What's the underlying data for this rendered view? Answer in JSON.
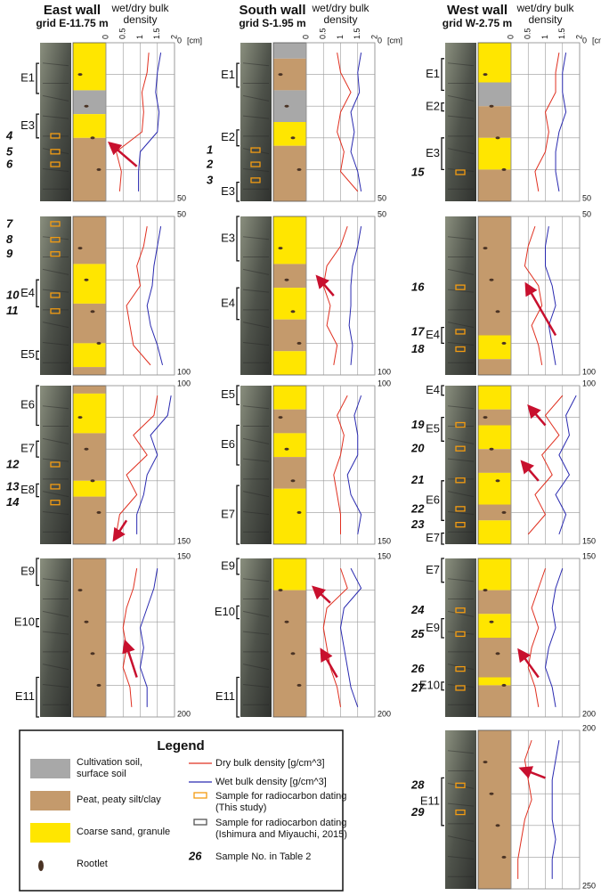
{
  "axis": {
    "ticks": [
      0,
      0.5,
      1,
      1.5,
      2
    ],
    "unit": "[cm]"
  },
  "walls": [
    {
      "title": "East wall",
      "grid": "grid E-11.75 m",
      "axis_label": [
        "wet/dry bulk",
        "density"
      ],
      "panels": [
        {
          "depths": [
            0,
            50
          ],
          "units": [
            "E1",
            "E3"
          ],
          "samples": [
            4,
            5,
            6
          ],
          "dry": [
            1.25,
            1.2,
            1.05,
            1.1,
            1.05,
            0.3,
            0.45,
            0.4
          ],
          "wet": [
            1.6,
            1.5,
            1.45,
            1.55,
            1.5,
            1.0,
            0.95,
            0.95
          ]
        },
        {
          "depths": [
            50,
            100
          ],
          "units": [
            "E4",
            "E5"
          ],
          "samples": [
            7,
            8,
            9,
            10,
            11
          ],
          "dry": [
            1.2,
            1.1,
            0.9,
            1.0,
            0.6,
            0.7,
            0.8,
            1.3
          ],
          "wet": [
            1.6,
            1.5,
            1.4,
            1.35,
            1.2,
            1.3,
            1.5,
            1.65
          ]
        },
        {
          "depths": [
            100,
            150
          ],
          "units": [
            "E6",
            "E7",
            "E8"
          ],
          "samples": [
            12,
            13,
            14
          ],
          "dry": [
            1.5,
            1.4,
            0.8,
            1.2,
            0.6,
            0.9,
            0.4,
            0.3
          ],
          "wet": [
            1.9,
            1.8,
            1.3,
            1.5,
            1.2,
            1.1,
            0.9,
            0.9
          ]
        },
        {
          "depths": [
            150,
            200
          ],
          "units": [
            "E9",
            "E10",
            "E11"
          ],
          "samples": [],
          "dry": [
            0.9,
            0.8,
            0.6,
            0.5,
            0.6,
            0.5,
            0.7,
            0.75
          ],
          "wet": [
            1.5,
            1.4,
            1.2,
            1.0,
            1.1,
            1.0,
            1.2,
            1.2
          ]
        }
      ]
    },
    {
      "title": "South wall",
      "grid": "grid S-1.95 m",
      "axis_label": [
        "wet/dry bulk",
        "density"
      ],
      "panels": [
        {
          "depths": [
            0,
            50
          ],
          "units": [
            "E1",
            "E2",
            "E3"
          ],
          "samples": [
            1,
            2,
            3
          ],
          "dry": [
            0.9,
            1.0,
            1.3,
            1.0,
            0.9,
            1.1,
            1.0,
            1.5
          ],
          "wet": [
            1.6,
            1.5,
            1.55,
            1.3,
            1.4,
            1.3,
            1.5,
            1.6
          ]
        },
        {
          "depths": [
            50,
            100
          ],
          "units": [
            "E3",
            "E4"
          ],
          "samples": [],
          "dry": [
            1.2,
            1.0,
            0.6,
            0.5,
            0.7,
            0.6,
            0.9,
            0.8
          ],
          "wet": [
            1.6,
            1.5,
            1.35,
            1.3,
            1.3,
            1.25,
            1.35,
            1.3
          ]
        },
        {
          "depths": [
            100,
            150
          ],
          "units": [
            "E5",
            "E6",
            "E7"
          ],
          "samples": [],
          "dry": [
            1.2,
            0.9,
            1.1,
            1.0,
            0.8,
            0.9,
            1.0,
            1.0
          ],
          "wet": [
            1.6,
            1.4,
            1.5,
            1.5,
            1.2,
            1.3,
            1.6,
            1.5
          ]
        },
        {
          "depths": [
            150,
            200
          ],
          "units": [
            "E9",
            "E10",
            "E11"
          ],
          "samples": [],
          "dry": [
            1.0,
            1.2,
            0.6,
            0.5,
            0.6,
            0.7,
            0.9,
            1.0
          ],
          "wet": [
            1.3,
            1.6,
            1.1,
            1.0,
            1.1,
            1.2,
            1.3,
            1.5
          ]
        }
      ]
    },
    {
      "title": "West wall",
      "grid": "grid W-2.75 m",
      "axis_label": [
        "wet/dry bulk",
        "density"
      ],
      "panels": [
        {
          "depths": [
            0,
            50
          ],
          "units": [
            "E1",
            "E2",
            "E3"
          ],
          "samples": [
            15
          ],
          "dry": [
            1.4,
            1.3,
            1.3,
            1.0,
            1.1,
            1.0,
            0.7,
            0.8
          ],
          "wet": [
            1.6,
            1.5,
            1.5,
            1.6,
            1.4,
            1.3,
            1.3,
            1.4
          ]
        },
        {
          "depths": [
            50,
            100
          ],
          "units": [
            "E4"
          ],
          "samples": [
            16,
            17,
            18
          ],
          "dry": [
            0.7,
            0.5,
            0.4,
            0.8,
            0.9,
            0.6,
            0.8,
            0.9
          ],
          "wet": [
            1.1,
            1.0,
            1.0,
            1.2,
            1.3,
            1.1,
            1.2,
            1.3
          ]
        },
        {
          "depths": [
            100,
            150
          ],
          "units": [
            "E4",
            "E5",
            "E6",
            "E7"
          ],
          "samples": [
            19,
            20,
            21,
            22,
            23
          ],
          "dry": [
            1.5,
            1.0,
            1.4,
            0.9,
            1.2,
            0.7,
            1.0,
            0.5
          ],
          "wet": [
            1.9,
            1.6,
            1.7,
            1.4,
            1.7,
            1.3,
            1.6,
            1.4
          ]
        },
        {
          "depths": [
            150,
            200
          ],
          "units": [
            "E7",
            "E9",
            "E10"
          ],
          "samples": [
            24,
            25,
            26,
            27
          ],
          "dry": [
            1.0,
            0.8,
            0.6,
            0.8,
            0.6,
            0.5,
            0.7,
            0.8
          ],
          "wet": [
            1.5,
            1.3,
            1.2,
            1.3,
            1.1,
            1.0,
            1.2,
            1.3
          ]
        },
        {
          "depths": [
            200,
            250
          ],
          "units": [
            "E11"
          ],
          "samples": [
            28,
            29
          ],
          "dry": [
            0.6,
            0.4,
            0.5,
            0.6,
            0.4,
            0.3,
            0.2,
            0.2
          ],
          "wet": [
            1.4,
            1.3,
            1.2,
            1.2,
            1.2,
            1.3,
            1.2,
            1.2
          ]
        }
      ]
    }
  ],
  "legend": {
    "title": "Legend",
    "left": [
      [
        "Cultivation soil,",
        "surface soil"
      ],
      [
        "Peat, peaty silt/clay"
      ],
      [
        "Coarse sand, granule"
      ],
      [
        "Rootlet"
      ]
    ],
    "right": [
      [
        "Dry bulk density [g/cm^3]"
      ],
      [
        "Wet bulk density [g/cm^3]"
      ],
      [
        "Sample for radiocarbon dating",
        "(This study)"
      ],
      [
        "Sample for radiocarbon dating",
        "(Ishimura and Miyauchi, 2015)"
      ]
    ],
    "sample_no": {
      "number": 26,
      "text": "Sample No. in Table 2"
    }
  }
}
